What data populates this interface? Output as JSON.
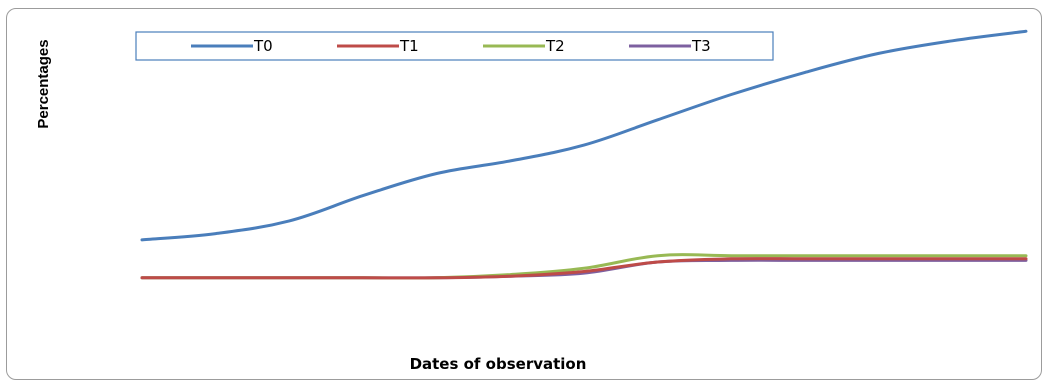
{
  "chart_data": {
    "type": "line",
    "title": "",
    "xlabel": "Dates of observation",
    "ylabel": "Percentages",
    "x": [
      1,
      2,
      3,
      4,
      5,
      6,
      7,
      8,
      9,
      10,
      11,
      12,
      13
    ],
    "ylim": [
      0,
      100
    ],
    "grid": false,
    "legend_position": "top",
    "series": [
      {
        "name": "T0",
        "color": "#4a7ebb",
        "values": [
          32,
          34,
          38,
          46,
          53,
          57,
          62,
          70,
          78,
          85,
          91,
          95,
          98
        ]
      },
      {
        "name": "T1",
        "color": "#be4b48",
        "values": [
          20,
          20,
          20,
          20,
          20,
          20.5,
          22,
          25,
          26,
          26,
          26,
          26,
          26
        ]
      },
      {
        "name": "T2",
        "color": "#98b954",
        "values": [
          20,
          20,
          20,
          20,
          20,
          21,
          23,
          27,
          27,
          27,
          27,
          27,
          27
        ]
      },
      {
        "name": "T3",
        "color": "#7d60a0",
        "values": [
          20,
          20,
          20,
          20,
          20,
          20.5,
          21.5,
          25,
          25.5,
          25.5,
          25.5,
          25.5,
          25.5
        ]
      }
    ]
  }
}
